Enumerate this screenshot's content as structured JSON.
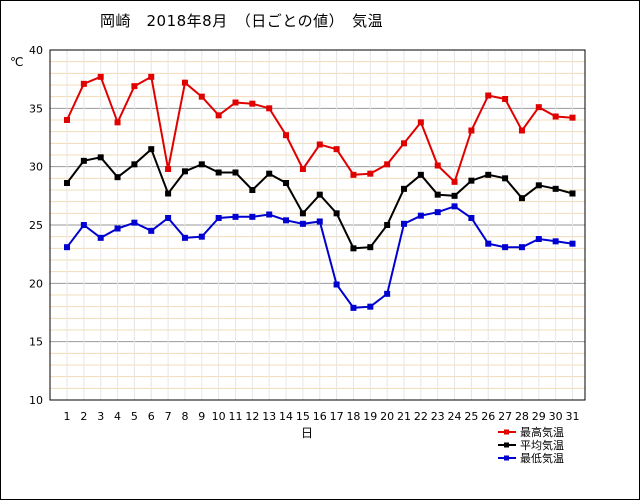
{
  "chart_data": {
    "type": "line",
    "title": "岡崎　2018年8月　（日ごとの値）　気温",
    "xlabel": "日",
    "ylabel": "℃",
    "ylim": [
      10,
      40
    ],
    "yticks": [
      10,
      15,
      20,
      25,
      30,
      35,
      40
    ],
    "categories": [
      "1",
      "2",
      "3",
      "4",
      "5",
      "6",
      "7",
      "8",
      "9",
      "10",
      "11",
      "12",
      "13",
      "14",
      "15",
      "16",
      "17",
      "18",
      "19",
      "20",
      "21",
      "22",
      "23",
      "24",
      "25",
      "26",
      "27",
      "28",
      "29",
      "30",
      "31"
    ],
    "grid": true,
    "legend_position": "bottom-right",
    "series": [
      {
        "name": "最高気温",
        "color": "#e00000",
        "values": [
          34.0,
          37.1,
          37.7,
          33.8,
          36.9,
          37.7,
          29.8,
          37.2,
          36.0,
          34.4,
          35.5,
          35.4,
          35.0,
          32.7,
          29.8,
          31.9,
          31.5,
          29.3,
          29.4,
          30.2,
          32.0,
          33.8,
          30.1,
          28.7,
          33.1,
          36.1,
          35.8,
          33.1,
          35.1,
          34.3,
          34.2
        ]
      },
      {
        "name": "平均気温",
        "color": "#000000",
        "values": [
          28.6,
          30.5,
          30.8,
          29.1,
          30.2,
          31.5,
          27.7,
          29.6,
          30.2,
          29.5,
          29.5,
          28.0,
          29.4,
          28.6,
          26.0,
          27.6,
          26.0,
          23.0,
          23.1,
          25.0,
          28.1,
          29.3,
          27.6,
          27.5,
          28.8,
          29.3,
          29.0,
          27.3,
          28.4,
          28.1,
          27.7
        ]
      },
      {
        "name": "最低気温",
        "color": "#0000d0",
        "values": [
          23.1,
          25.0,
          23.9,
          24.7,
          25.2,
          24.5,
          25.6,
          23.9,
          24.0,
          25.6,
          25.7,
          25.7,
          25.9,
          25.4,
          25.1,
          25.3,
          19.9,
          17.9,
          18.0,
          19.1,
          25.1,
          25.8,
          26.1,
          26.6,
          25.6,
          23.4,
          23.1,
          23.1,
          23.8,
          23.6,
          23.4
        ]
      }
    ]
  }
}
